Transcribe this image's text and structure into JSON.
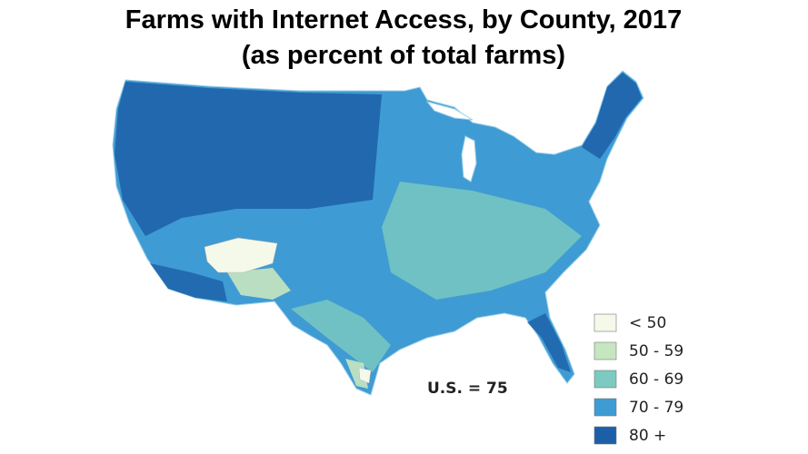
{
  "title": [
    "Farms with Internet Access, by County, 2017",
    "(as percent of total farms)"
  ],
  "legend": [
    {
      "label": "< 50",
      "color": "#f5f9ea"
    },
    {
      "label": "50 - 59",
      "color": "#c6e6c0"
    },
    {
      "label": "60 - 69",
      "color": "#7ccac0"
    },
    {
      "label": "70 - 79",
      "color": "#3f9bd3"
    },
    {
      "label": "80 +",
      "color": "#1c5fa8"
    }
  ],
  "annotation": "U.S. = 75"
}
